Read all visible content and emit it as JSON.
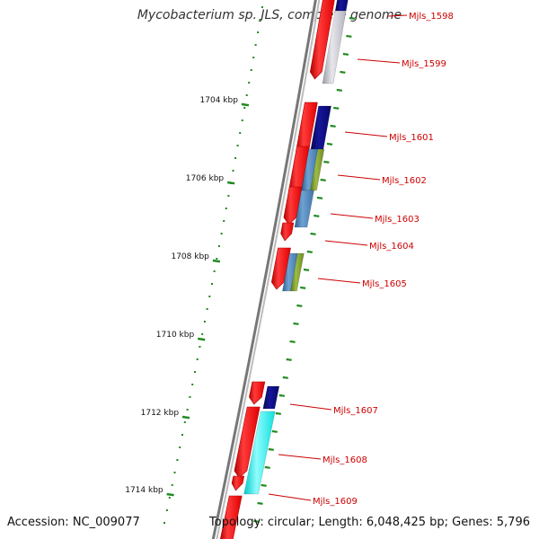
{
  "title": "Mycobacterium sp. JLS, complete genome",
  "footer": {
    "accession": "Accession: NC_009077",
    "summary": "Topology: circular; Length: 6,048,425 bp; Genes: 5,796"
  },
  "colors": {
    "forward": "#ff1a1a",
    "backbone": "#8a8a8a",
    "ticks": "#1f8a1f",
    "label": "#cc0000",
    "navy": "#0b0b7a",
    "silver": "#c9c9d2",
    "steel": "#4f86b8",
    "olive": "#7f9b2f",
    "cyan": "#22f2f2"
  },
  "scale_labels": [
    {
      "text": "1704 kbp"
    },
    {
      "text": "1706 kbp"
    },
    {
      "text": "1708 kbp"
    },
    {
      "text": "1710 kbp"
    },
    {
      "text": "1712 kbp"
    },
    {
      "text": "1714 kbp"
    }
  ],
  "gene_labels": [
    {
      "text": "Mjls_1598"
    },
    {
      "text": "Mjls_1599"
    },
    {
      "text": "Mjls_1601"
    },
    {
      "text": "Mjls_1602"
    },
    {
      "text": "Mjls_1603"
    },
    {
      "text": "Mjls_1604"
    },
    {
      "text": "Mjls_1605"
    },
    {
      "text": "Mjls_1607"
    },
    {
      "text": "Mjls_1608"
    },
    {
      "text": "Mjls_1609"
    }
  ]
}
